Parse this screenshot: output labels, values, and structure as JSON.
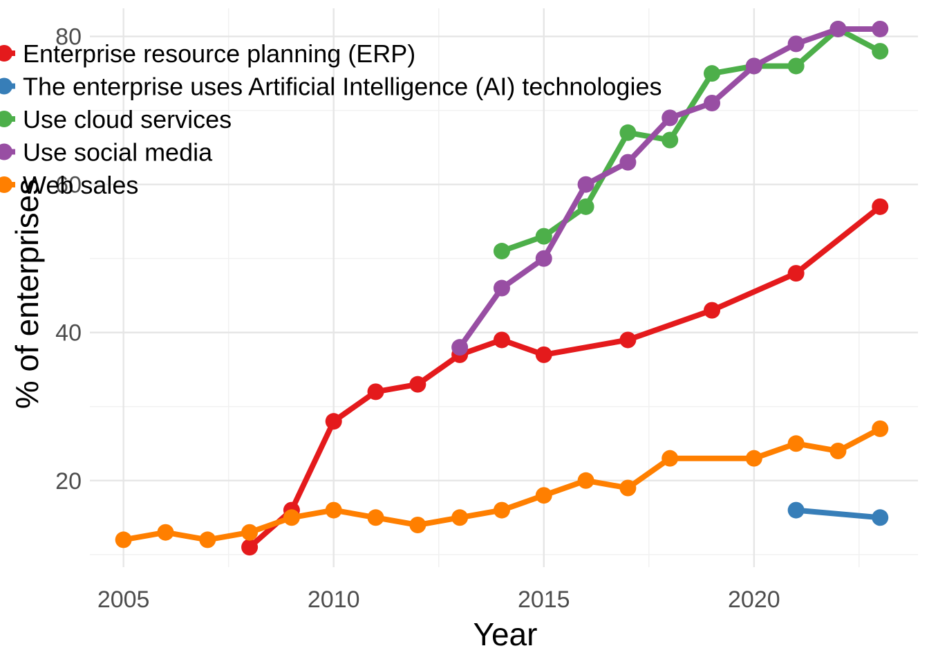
{
  "chart_data": {
    "type": "line",
    "title": "",
    "xlabel": "Year",
    "ylabel": "% of enterprises",
    "xlim": [
      2004.2,
      2023.9
    ],
    "ylim": [
      8.3,
      83.8
    ],
    "x_ticks": [
      2005,
      2010,
      2015,
      2020
    ],
    "y_ticks": [
      20,
      40,
      60,
      80
    ],
    "grid": true,
    "legend_position": "top-left",
    "series": [
      {
        "name": "Enterprise resource planning (ERP)",
        "color": "#E41A1C",
        "points": [
          [
            2008,
            11
          ],
          [
            2009,
            16
          ],
          [
            2010,
            28
          ],
          [
            2011,
            32
          ],
          [
            2012,
            33
          ],
          [
            2013,
            37
          ],
          [
            2014,
            39
          ],
          [
            2015,
            37
          ],
          [
            2017,
            39
          ],
          [
            2019,
            43
          ],
          [
            2021,
            48
          ],
          [
            2023,
            57
          ]
        ]
      },
      {
        "name": "The enterprise uses Artificial Intelligence (AI) technologies",
        "color": "#377EB8",
        "points": [
          [
            2021,
            16
          ],
          [
            2023,
            15
          ]
        ]
      },
      {
        "name": "Use cloud services",
        "color": "#4DAF4A",
        "points": [
          [
            2014,
            51
          ],
          [
            2015,
            53
          ],
          [
            2016,
            57
          ],
          [
            2017,
            67
          ],
          [
            2018,
            66
          ],
          [
            2019,
            75
          ],
          [
            2020,
            76
          ],
          [
            2021,
            76
          ],
          [
            2022,
            81
          ],
          [
            2023,
            78
          ]
        ]
      },
      {
        "name": "Use social media",
        "color": "#984EA3",
        "points": [
          [
            2013,
            38
          ],
          [
            2014,
            46
          ],
          [
            2015,
            50
          ],
          [
            2016,
            60
          ],
          [
            2017,
            63
          ],
          [
            2018,
            69
          ],
          [
            2019,
            71
          ],
          [
            2020,
            76
          ],
          [
            2021,
            79
          ],
          [
            2022,
            81
          ],
          [
            2023,
            81
          ]
        ]
      },
      {
        "name": "Web sales",
        "color": "#FF7F00",
        "points": [
          [
            2005,
            12
          ],
          [
            2006,
            13
          ],
          [
            2007,
            12
          ],
          [
            2008,
            13
          ],
          [
            2009,
            15
          ],
          [
            2010,
            16
          ],
          [
            2011,
            15
          ],
          [
            2012,
            14
          ],
          [
            2013,
            15
          ],
          [
            2014,
            16
          ],
          [
            2015,
            18
          ],
          [
            2016,
            20
          ],
          [
            2017,
            19
          ],
          [
            2018,
            23
          ],
          [
            2020,
            23
          ],
          [
            2021,
            25
          ],
          [
            2022,
            24
          ],
          [
            2023,
            27
          ]
        ]
      }
    ]
  }
}
